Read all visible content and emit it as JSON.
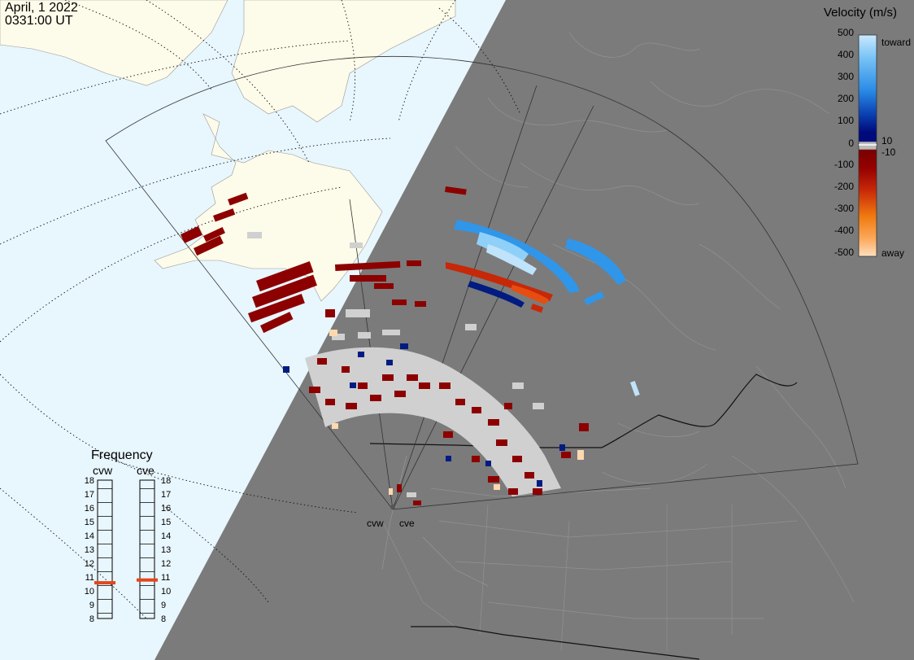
{
  "header": {
    "date": "April, 1 2022",
    "time": "0331:00 UT"
  },
  "velocity_scale": {
    "title": "Velocity (m/s)",
    "ticks": [
      "500",
      "400",
      "300",
      "200",
      "100",
      "10",
      "0",
      "-10",
      "-100",
      "-200",
      "-300",
      "-400",
      "-500"
    ],
    "label_toward": "toward",
    "label_away": "away",
    "colors": {
      "toward_light": "#bfe3fb",
      "toward_mid": "#2f96ea",
      "toward_dark": "#001b82",
      "ground_scatter": "#d0d0d0",
      "away_dark": "#8c0000",
      "away_mid": "#dd3a10",
      "away_light": "#ffd8b0"
    }
  },
  "frequency_panel": {
    "title": "Frequency",
    "radars": [
      {
        "name": "cvw",
        "freq_mhz": 10.7
      },
      {
        "name": "cve",
        "freq_mhz": 10.9
      }
    ],
    "scale_numbers": [
      "18",
      "17",
      "16",
      "15",
      "14",
      "13",
      "12",
      "11",
      "10",
      "9",
      "8"
    ],
    "indicator_color": "#e4461a"
  },
  "map": {
    "land_day_color": "#fdfbe9",
    "ocean_day_color": "#e8f6fd",
    "night_color": "#7b7b7b",
    "sites": [
      {
        "label": "cvw"
      },
      {
        "label": "cve"
      }
    ]
  }
}
